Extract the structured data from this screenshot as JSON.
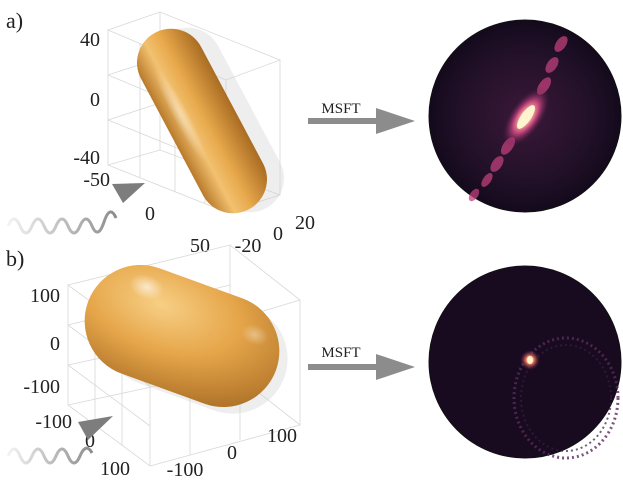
{
  "panels": [
    {
      "label": "a)",
      "axis_ticks": {
        "vertical": [
          "40",
          "0",
          "-40"
        ],
        "depth": [
          "-50",
          "0",
          "50"
        ],
        "horizontal": [
          "-20",
          "0",
          "20"
        ]
      },
      "arrow_label": "MSFT"
    },
    {
      "label": "b)",
      "axis_ticks": {
        "vertical": [
          "100",
          "0",
          "-100"
        ],
        "depth": [
          "-100",
          "0",
          "100"
        ],
        "horizontal": [
          "-100",
          "0",
          "100"
        ]
      },
      "arrow_label": "MSFT"
    }
  ],
  "colors": {
    "particle_gold": "#e6a64a",
    "arrow_gray": "#8c8c8c",
    "pattern_dark": "#1a0c22",
    "pattern_bright": "#fff2cc"
  }
}
